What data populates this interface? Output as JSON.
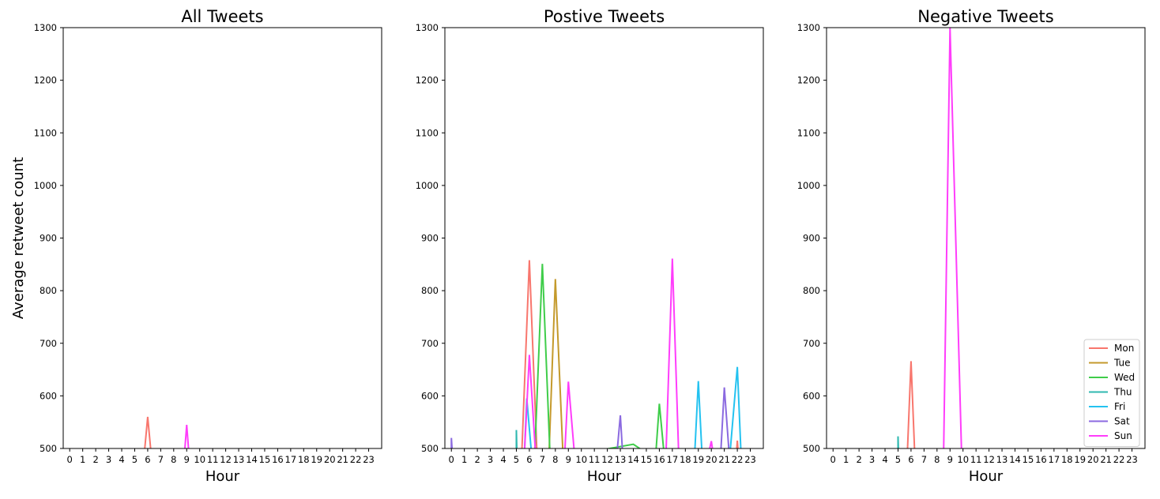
{
  "chart_data": [
    {
      "type": "line",
      "title": "All Tweets",
      "xlabel": "Hour",
      "ylabel": "Average retweet count",
      "ylim": [
        500,
        1300
      ],
      "yticks": [
        500,
        600,
        700,
        800,
        900,
        1000,
        1100,
        1200,
        1300
      ],
      "x": [
        0,
        1,
        2,
        3,
        4,
        5,
        6,
        7,
        8,
        9,
        10,
        11,
        12,
        13,
        14,
        15,
        16,
        17,
        18,
        19,
        20,
        21,
        22,
        23
      ],
      "series": [
        {
          "name": "Mon",
          "color": "#f8766d",
          "points": [
            [
              5.7,
              null
            ],
            [
              6,
              560
            ],
            [
              6.3,
              null
            ]
          ]
        },
        {
          "name": "Sun",
          "color": "#ff3dfb",
          "points": [
            [
              8.8,
              null
            ],
            [
              9,
              545
            ],
            [
              9.2,
              null
            ]
          ]
        }
      ],
      "legend": "none"
    },
    {
      "type": "line",
      "title": "Postive Tweets",
      "xlabel": "Hour",
      "ylabel": "",
      "ylim": [
        500,
        1300
      ],
      "yticks": [
        500,
        600,
        700,
        800,
        900,
        1000,
        1100,
        1200,
        1300
      ],
      "x": [
        0,
        1,
        2,
        3,
        4,
        5,
        6,
        7,
        8,
        9,
        10,
        11,
        12,
        13,
        14,
        15,
        16,
        17,
        18,
        19,
        20,
        21,
        22,
        23
      ],
      "series": [
        {
          "name": "Mon",
          "color": "#f8766d",
          "points": [
            [
              5.4,
              null
            ],
            [
              6,
              858
            ],
            [
              6.6,
              null
            ],
            [
              21.9,
              null
            ],
            [
              22,
              515
            ],
            [
              22.1,
              null
            ]
          ]
        },
        {
          "name": "Tue",
          "color": "#c49a2c",
          "points": [
            [
              7.5,
              null
            ],
            [
              8,
              822
            ],
            [
              8.6,
              null
            ]
          ]
        },
        {
          "name": "Wed",
          "color": "#3fcd4a",
          "points": [
            [
              6.4,
              null
            ],
            [
              7,
              851
            ],
            [
              7.6,
              null
            ],
            [
              14,
              508
            ],
            [
              15.7,
              null
            ],
            [
              16,
              585
            ],
            [
              16.4,
              null
            ]
          ]
        },
        {
          "name": "Thu",
          "color": "#2fb8b0",
          "points": [
            [
              5,
              535
            ],
            [
              5.05,
              null
            ]
          ]
        },
        {
          "name": "Fri",
          "color": "#24c2f0",
          "points": [
            [
              5.6,
              null
            ],
            [
              5.8,
              595
            ],
            [
              6.2,
              null
            ],
            [
              18.7,
              null
            ],
            [
              19,
              628
            ],
            [
              19.3,
              null
            ],
            [
              21.4,
              null
            ],
            [
              22,
              655
            ],
            [
              22.3,
              null
            ]
          ]
        },
        {
          "name": "Sat",
          "color": "#8b6ae0",
          "points": [
            [
              0,
              520
            ],
            [
              0.1,
              null
            ],
            [
              12.7,
              null
            ],
            [
              13,
              563
            ],
            [
              13.2,
              null
            ],
            [
              20.7,
              null
            ],
            [
              21,
              616
            ],
            [
              21.4,
              null
            ]
          ]
        },
        {
          "name": "Sun",
          "color": "#ff3dfb",
          "points": [
            [
              5.6,
              null
            ],
            [
              6,
              678
            ],
            [
              6.5,
              null
            ],
            [
              8.7,
              null
            ],
            [
              9,
              627
            ],
            [
              9.5,
              null
            ],
            [
              16.5,
              null
            ],
            [
              17,
              861
            ],
            [
              17.5,
              null
            ],
            [
              19.7,
              null
            ],
            [
              20,
              514
            ],
            [
              20.2,
              null
            ]
          ]
        }
      ],
      "legend": "none"
    },
    {
      "type": "line",
      "title": "Negative Tweets",
      "xlabel": "Hour",
      "ylabel": "",
      "ylim": [
        500,
        1300
      ],
      "yticks": [
        500,
        600,
        700,
        800,
        900,
        1000,
        1100,
        1200,
        1300
      ],
      "x": [
        0,
        1,
        2,
        3,
        4,
        5,
        6,
        7,
        8,
        9,
        10,
        11,
        12,
        13,
        14,
        15,
        16,
        17,
        18,
        19,
        20,
        21,
        22,
        23
      ],
      "series": [
        {
          "name": "Mon",
          "color": "#f8766d",
          "points": [
            [
              5.7,
              null
            ],
            [
              6,
              666
            ],
            [
              6.3,
              null
            ]
          ]
        },
        {
          "name": "Tue",
          "color": "#c49a2c",
          "points": []
        },
        {
          "name": "Wed",
          "color": "#3fcd4a",
          "points": []
        },
        {
          "name": "Thu",
          "color": "#2fb8b0",
          "points": [
            [
              5,
              523
            ],
            [
              5.05,
              null
            ]
          ]
        },
        {
          "name": "Fri",
          "color": "#24c2f0",
          "points": []
        },
        {
          "name": "Sat",
          "color": "#8b6ae0",
          "points": []
        },
        {
          "name": "Sun",
          "color": "#ff3dfb",
          "points": [
            [
              8.5,
              null
            ],
            [
              9,
              1300
            ],
            [
              9.9,
              null
            ]
          ]
        }
      ],
      "legend": "lower-right",
      "legend_entries": [
        {
          "name": "Mon",
          "color": "#f8766d"
        },
        {
          "name": "Tue",
          "color": "#c49a2c"
        },
        {
          "name": "Wed",
          "color": "#3fcd4a"
        },
        {
          "name": "Thu",
          "color": "#2fb8b0"
        },
        {
          "name": "Fri",
          "color": "#24c2f0"
        },
        {
          "name": "Sat",
          "color": "#8b6ae0"
        },
        {
          "name": "Sun",
          "color": "#ff3dfb"
        }
      ]
    }
  ]
}
